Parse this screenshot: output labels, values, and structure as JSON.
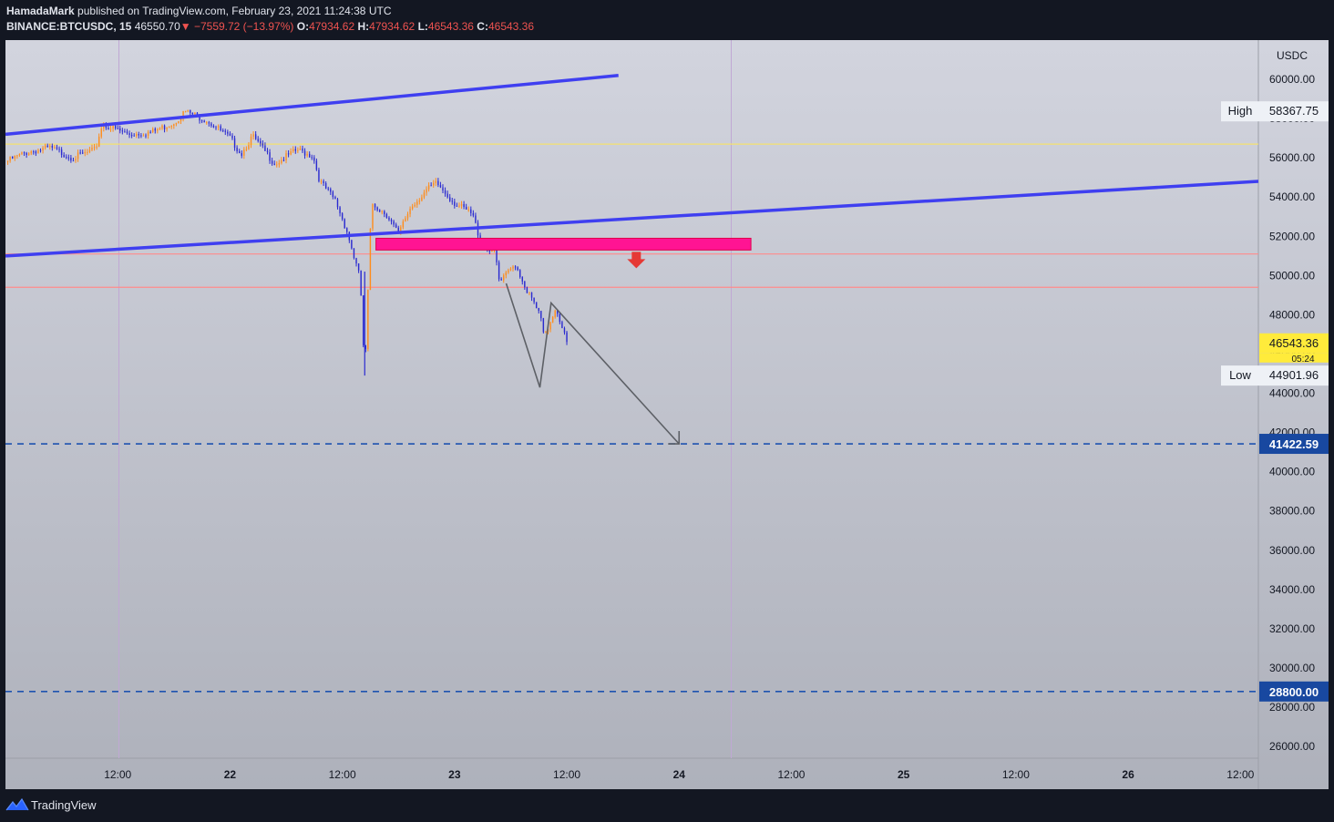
{
  "header": {
    "author": "HamadaMark",
    "published": "published on TradingView.com, February 23, 2021 11:24:38 UTC",
    "symbol": "BINANCE:BTCUSDC, 15",
    "last": "46550.70",
    "change": "▼ −7559.72 (−13.97%)",
    "o_label": "O:",
    "o": "47934.62",
    "h_label": "H:",
    "h": "47934.62",
    "l_label": "L:",
    "l": "46543.36",
    "c_label": "C:",
    "c": "46543.36"
  },
  "footer": {
    "brand": "TradingView",
    "logo_icon": "tradingview-logo-icon"
  },
  "chart_data": {
    "type": "candlestick",
    "currency": "USDC",
    "x_ticks": [
      "12:00",
      "22",
      "12:00",
      "23",
      "12:00",
      "24",
      "12:00",
      "25",
      "12:00",
      "26",
      "12:00"
    ],
    "x_tick_times": [
      0.5,
      1.0,
      1.5,
      2.0,
      2.5,
      3.0,
      3.5,
      4.0,
      4.5,
      5.0,
      5.5
    ],
    "x_range_days": [
      0.0,
      5.58
    ],
    "y_ticks": [
      60000,
      58000,
      56000,
      54000,
      52000,
      50000,
      48000,
      46000,
      44000,
      42000,
      40000,
      38000,
      36000,
      34000,
      32000,
      30000,
      28000,
      26000
    ],
    "y_range": [
      25400,
      62000
    ],
    "price_path": [
      [
        0.0,
        55800
      ],
      [
        0.1,
        56300
      ],
      [
        0.2,
        56500
      ],
      [
        0.3,
        56000
      ],
      [
        0.4,
        56400
      ],
      [
        0.43,
        57700
      ],
      [
        0.55,
        57200
      ],
      [
        0.65,
        57300
      ],
      [
        0.75,
        57800
      ],
      [
        0.8,
        58367.75
      ],
      [
        0.9,
        57900
      ],
      [
        1.0,
        57000
      ],
      [
        1.05,
        56200
      ],
      [
        1.1,
        57100
      ],
      [
        1.2,
        55700
      ],
      [
        1.3,
        56400
      ],
      [
        1.37,
        56100
      ],
      [
        1.4,
        54800
      ],
      [
        1.47,
        53800
      ],
      [
        1.52,
        52300
      ],
      [
        1.58,
        49800
      ],
      [
        1.6,
        44901.96
      ],
      [
        1.63,
        53700
      ],
      [
        1.7,
        53100
      ],
      [
        1.75,
        52100
      ],
      [
        1.8,
        53400
      ],
      [
        1.87,
        54300
      ],
      [
        1.92,
        54700
      ],
      [
        2.0,
        53700
      ],
      [
        2.08,
        53100
      ],
      [
        2.12,
        51600
      ],
      [
        2.18,
        51200
      ],
      [
        2.2,
        49600
      ],
      [
        2.27,
        50600
      ],
      [
        2.32,
        49300
      ],
      [
        2.38,
        48000
      ],
      [
        2.4,
        46800
      ],
      [
        2.45,
        48400
      ],
      [
        2.48,
        47400
      ],
      [
        2.5,
        46543.36
      ]
    ],
    "drawn_lines": [
      {
        "kind": "trend",
        "color": "#3f3ff0",
        "points": [
          [
            0.0,
            57200
          ],
          [
            2.73,
            60200
          ]
        ]
      },
      {
        "kind": "trend",
        "color": "#3f3ff0",
        "points": [
          [
            0.0,
            51000
          ],
          [
            5.58,
            54800
          ]
        ]
      },
      {
        "kind": "horizontal",
        "color": "#f4e070",
        "price": 56700
      },
      {
        "kind": "horizontal",
        "color": "#ff8b8b",
        "price": 51100
      },
      {
        "kind": "horizontal",
        "color": "#ff8b8b",
        "price": 49400
      },
      {
        "kind": "horizontal-dashed",
        "color": "#1e53b0",
        "price": 41422.59,
        "label": "41422.59"
      },
      {
        "kind": "horizontal-dashed",
        "color": "#1e53b0",
        "price": 28800.0,
        "label": "28800.00"
      },
      {
        "kind": "projection",
        "color": "#5d6066",
        "points": [
          [
            2.23,
            49600
          ],
          [
            2.38,
            44300
          ],
          [
            2.43,
            48600
          ],
          [
            3.0,
            41422.59
          ]
        ]
      }
    ],
    "zone": {
      "color": "#ff1493",
      "x": [
        1.65,
        3.32
      ],
      "price": [
        51300,
        51900
      ]
    },
    "zone_arrow": {
      "color": "#e53935",
      "direction": "down"
    },
    "price_labels": [
      {
        "text": "High",
        "value": "58367.75",
        "price": 58367.75
      },
      {
        "text": "Low",
        "value": "44901.96",
        "price": 44901.96
      },
      {
        "text": "",
        "value": "46543.36",
        "price": 46543.36,
        "color": "#ffeb3b",
        "countdown": "05:24"
      }
    ]
  }
}
